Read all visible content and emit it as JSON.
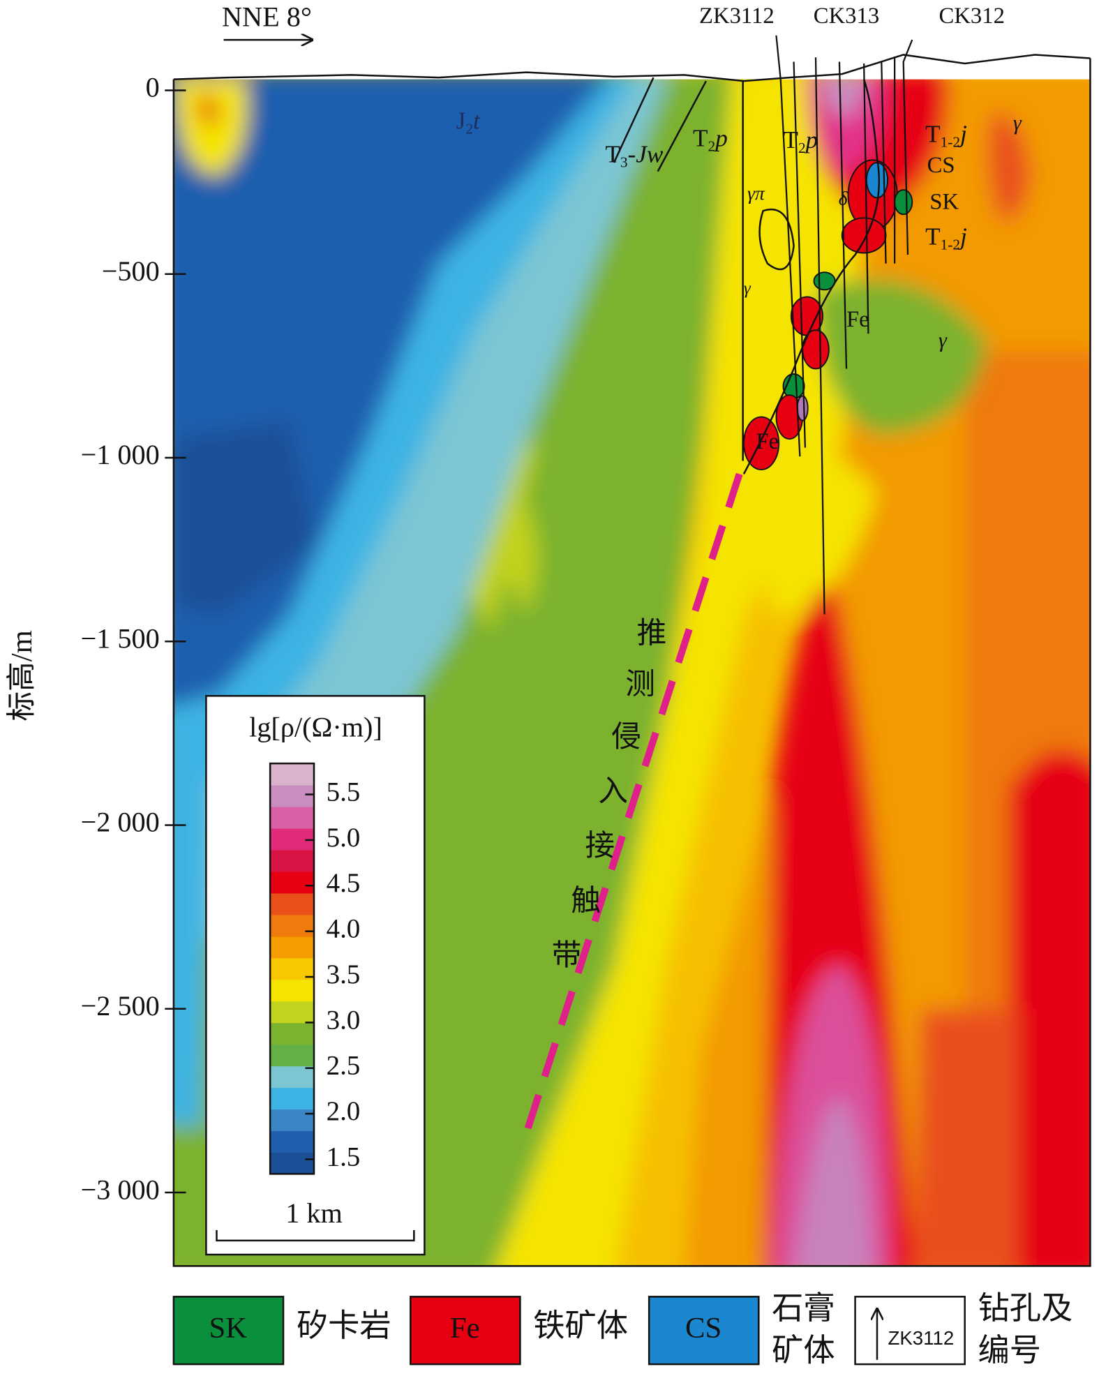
{
  "chart_data": {
    "type": "resistivity-section",
    "direction": "NNE 8°",
    "y_label": "标高/m",
    "ylim": [
      -3200,
      30
    ],
    "yticks": [
      0,
      {
        "value": -500,
        "label": "−500"
      },
      {
        "value": -1000,
        "label": "−1 000"
      },
      {
        "value": -1500,
        "label": "−1 500"
      },
      {
        "value": -2000,
        "label": "−2 000"
      },
      {
        "value": -2500,
        "label": "−2 500"
      },
      {
        "value": -3000,
        "label": "−3 000"
      }
    ],
    "drill_labels": [
      "ZK3112",
      "CK313",
      "CK312"
    ],
    "formations": [
      {
        "base": "J",
        "sub": "2",
        "rest": "t"
      },
      {
        "base": "T",
        "sub": "3",
        "rest": "-Jw"
      },
      {
        "base": "T",
        "sub": "2",
        "rest": "p"
      },
      {
        "base": "T",
        "sub": "2",
        "rest": "p"
      },
      {
        "base": "T",
        "sub": "1-2",
        "rest": "j"
      },
      {
        "base": "T",
        "sub": "1-2",
        "rest": "j"
      }
    ],
    "rock_labels": [
      "γπ",
      "γ",
      "δ",
      "CS",
      "SK",
      "Fe",
      "γ",
      "γ",
      "Fe"
    ],
    "contact_zone_label": [
      "推",
      "测",
      "侵",
      "入",
      "接",
      "触",
      "带"
    ],
    "colorbar": {
      "title": "lg[ρ/(Ω·m)]",
      "lim": [
        1.34,
        5.84
      ],
      "ticks": [
        5.5,
        {
          "value": 5,
          "label": "5.0"
        },
        4.5,
        {
          "value": 4,
          "label": "4.0"
        },
        3.5,
        {
          "value": 3,
          "label": "3.0"
        },
        2.5,
        {
          "value": 2,
          "label": "2.0"
        },
        1.5
      ],
      "colors": [
        "#1c4f96",
        "#1f5fae",
        "#3a85c6",
        "#3db3e3",
        "#7cc6d4",
        "#64b046",
        "#7bb22e",
        "#c2d21d",
        "#f5e400",
        "#f9c700",
        "#f49c00",
        "#ef7a0e",
        "#e9501a",
        "#e60012",
        "#d71444",
        "#e02b79",
        "#d95fa6",
        "#c98dc0",
        "#d9b2cd"
      ]
    },
    "scale_label": "1 km",
    "legend": [
      {
        "key": "SK",
        "label": [
          "矽卡岩"
        ],
        "color": "#0a8f3c"
      },
      {
        "key": "Fe",
        "label": [
          "铁矿体"
        ],
        "color": "#e60012"
      },
      {
        "key": "CS",
        "label": [
          "石膏",
          "矿体"
        ],
        "color": "#1b87d0"
      },
      {
        "key": "ZK3112",
        "label": [
          "钻孔及",
          "编号"
        ],
        "color": "#ffffff"
      }
    ]
  }
}
